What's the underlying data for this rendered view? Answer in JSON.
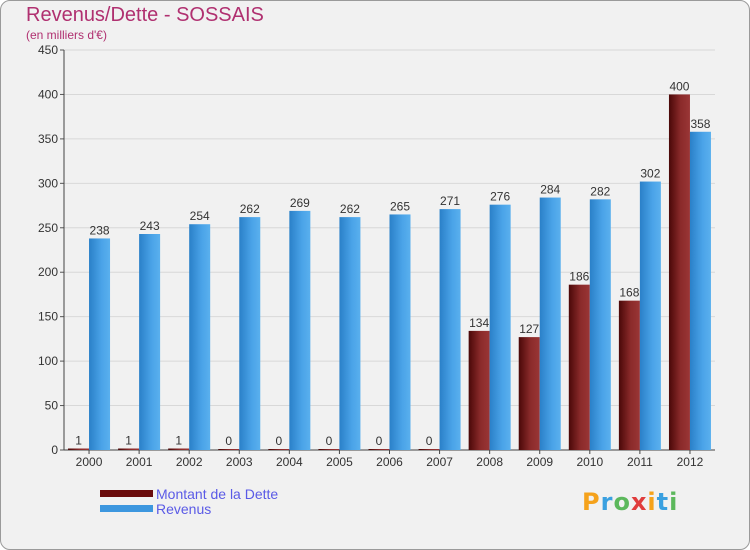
{
  "header": {
    "title": "Revenus/Dette - SOSSAIS",
    "subtitle": "(en milliers d'€)"
  },
  "logo": {
    "letters": [
      "P",
      "r",
      "o",
      "x",
      "i",
      "t",
      "i"
    ],
    "colors": [
      "#f5a21b",
      "#3aa0e0",
      "#5cb85c",
      "#e03c3c",
      "#f5a21b",
      "#3aa0e0",
      "#5cb85c"
    ]
  },
  "chart_data": {
    "type": "bar",
    "categories": [
      "2000",
      "2001",
      "2002",
      "2003",
      "2004",
      "2005",
      "2006",
      "2007",
      "2008",
      "2009",
      "2010",
      "2011",
      "2012"
    ],
    "series": [
      {
        "name": "Montant de la Dette",
        "color": "#7a1a1a",
        "values": [
          1,
          1,
          1,
          0,
          0,
          0,
          0,
          0,
          134,
          127,
          186,
          168,
          400
        ]
      },
      {
        "name": "Revenus",
        "color": "#3d97df",
        "values": [
          238,
          243,
          254,
          262,
          269,
          262,
          265,
          271,
          276,
          284,
          282,
          302,
          358
        ]
      }
    ],
    "ylim": [
      0,
      450
    ],
    "yticks": [
      0,
      50,
      100,
      150,
      200,
      250,
      300,
      350,
      400,
      450
    ],
    "grid": true,
    "legend": "bottom-left"
  }
}
